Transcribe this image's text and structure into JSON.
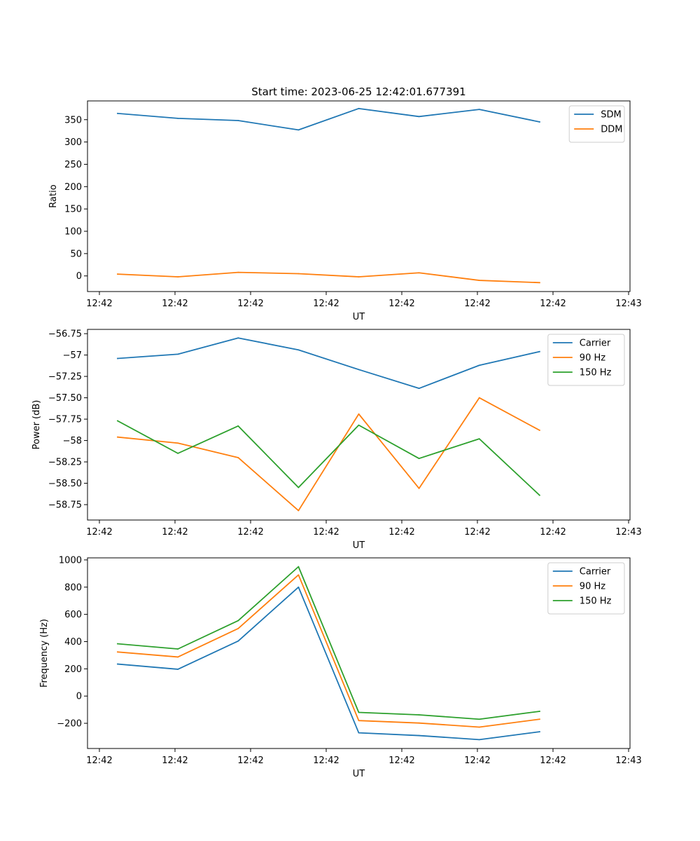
{
  "figure": {
    "title": "Start time: 2023-06-25 12:42:01.677391"
  },
  "chart_data": [
    {
      "type": "line",
      "title": "",
      "xlabel": "UT",
      "ylabel": "Ratio",
      "x_tick_labels": [
        "12:42",
        "12:42",
        "12:42",
        "12:42",
        "12:42",
        "12:42",
        "12:42"
      ],
      "x_tick_label_end": "12:43",
      "xlim": [
        -0.5,
        8.5
      ],
      "ylim": [
        -35,
        392
      ],
      "y_ticks": [
        0,
        50,
        100,
        150,
        200,
        250,
        300,
        350
      ],
      "legend": "top-right",
      "grid": false,
      "series": [
        {
          "name": "SDM",
          "color": "#1f77b4",
          "values": [
            364,
            353,
            348,
            327,
            375,
            357,
            373,
            345
          ]
        },
        {
          "name": "DDM",
          "color": "#ff7f0e",
          "values": [
            4,
            -2,
            8,
            5,
            -2,
            7,
            -10,
            -15
          ]
        }
      ]
    },
    {
      "type": "line",
      "title": "",
      "xlabel": "UT",
      "ylabel": "Power (dB)",
      "x_tick_labels": [
        "12:42",
        "12:42",
        "12:42",
        "12:42",
        "12:42",
        "12:42",
        "12:42"
      ],
      "x_tick_label_end": "12:43",
      "xlim": [
        -0.5,
        8.5
      ],
      "ylim": [
        -58.93,
        -56.7
      ],
      "y_ticks": [
        -58.75,
        -58.5,
        -58.25,
        -58.0,
        -57.75,
        -57.5,
        -57.25,
        -57.0,
        -56.75
      ],
      "legend": "top-right",
      "grid": false,
      "series": [
        {
          "name": "Carrier",
          "color": "#1f77b4",
          "values": [
            -57.04,
            -56.99,
            -56.8,
            -56.94,
            -57.17,
            -57.39,
            -57.12,
            -56.96
          ]
        },
        {
          "name": "90 Hz",
          "color": "#ff7f0e",
          "values": [
            -57.96,
            -58.03,
            -58.2,
            -58.82,
            -57.69,
            -58.56,
            -57.5,
            -57.88
          ]
        },
        {
          "name": "150 Hz",
          "color": "#2ca02c",
          "values": [
            -57.77,
            -58.15,
            -57.83,
            -58.55,
            -57.82,
            -58.21,
            -57.98,
            -58.64
          ]
        }
      ]
    },
    {
      "type": "line",
      "title": "",
      "xlabel": "UT",
      "ylabel": "Frequency (Hz)",
      "x_tick_labels": [
        "12:42",
        "12:42",
        "12:42",
        "12:42",
        "12:42",
        "12:42",
        "12:42"
      ],
      "x_tick_label_end": "12:43",
      "xlim": [
        -0.5,
        8.5
      ],
      "ylim": [
        -385,
        1015
      ],
      "y_ticks": [
        -200,
        0,
        200,
        400,
        600,
        800,
        1000
      ],
      "legend": "top-right",
      "grid": false,
      "series": [
        {
          "name": "Carrier",
          "color": "#1f77b4",
          "values": [
            235,
            197,
            404,
            800,
            -270,
            -290,
            -320,
            -262
          ]
        },
        {
          "name": "90 Hz",
          "color": "#ff7f0e",
          "values": [
            324,
            287,
            496,
            890,
            -180,
            -198,
            -228,
            -170
          ]
        },
        {
          "name": "150 Hz",
          "color": "#2ca02c",
          "values": [
            384,
            346,
            554,
            950,
            -120,
            -138,
            -170,
            -112
          ]
        }
      ]
    }
  ]
}
